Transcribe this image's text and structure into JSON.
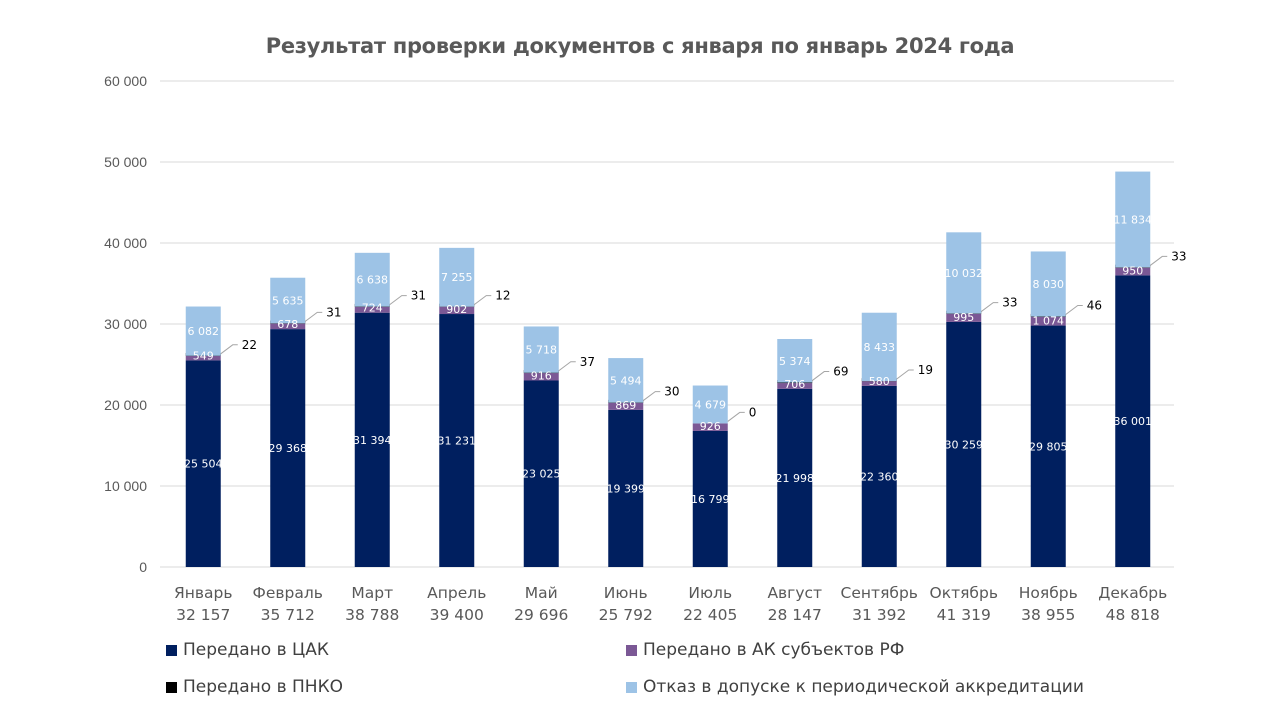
{
  "chart_data": {
    "type": "bar",
    "stacked": true,
    "title": "Результат проверки документов с января по январь 2024 года",
    "xlabel": "",
    "ylabel": "",
    "ylim": [
      0,
      60000
    ],
    "yticks": [
      0,
      10000,
      20000,
      30000,
      40000,
      50000,
      60000
    ],
    "ytick_labels": [
      "0",
      "10 000",
      "20 000",
      "30 000",
      "40 000",
      "50 000",
      "60 000"
    ],
    "grid": true,
    "legend_position": "bottom",
    "categories": [
      "Январь",
      "Февраль",
      "Март",
      "Апрель",
      "Май",
      "Июнь",
      "Июль",
      "Август",
      "Сентябрь",
      "Октябрь",
      "Ноябрь",
      "Декабрь"
    ],
    "category_totals": [
      "32 157",
      "35 712",
      "38 788",
      "39 400",
      "29 696",
      "25 792",
      "22 405",
      "28 147",
      "31 392",
      "41 319",
      "38 955",
      "48 818"
    ],
    "series": [
      {
        "name": "Передано в ЦАК",
        "color": "#001F5F",
        "label_style": "inside",
        "values": [
          25504,
          29368,
          31394,
          31231,
          23025,
          19399,
          16799,
          21998,
          22360,
          30259,
          29805,
          36001
        ],
        "labels": [
          "25 504",
          "29 368",
          "31 394",
          "31 231",
          "23 025",
          "19 399",
          "16 799",
          "21 998",
          "22 360",
          "30 259",
          "29 805",
          "36 001"
        ]
      },
      {
        "name": "Передано в АК субъектов РФ",
        "color": "#7B5895",
        "label_style": "inside",
        "values": [
          549,
          678,
          724,
          902,
          916,
          869,
          926,
          706,
          580,
          995,
          1074,
          950
        ],
        "labels": [
          "549",
          "678",
          "724",
          "902",
          "916",
          "869",
          "926",
          "706",
          "580",
          "995",
          "1 074",
          "950"
        ]
      },
      {
        "name": "Передано в ПНКО",
        "color": "#000000",
        "label_style": "callout",
        "values": [
          22,
          31,
          31,
          12,
          37,
          30,
          0,
          69,
          19,
          33,
          46,
          33
        ],
        "labels": [
          "22",
          "31",
          "31",
          "12",
          "37",
          "30",
          "0",
          "69",
          "19",
          "33",
          "46",
          "33"
        ]
      },
      {
        "name": "Отказ в допуске к периодической аккредитации",
        "color": "#9DC3E6",
        "label_style": "inside",
        "values": [
          6082,
          5635,
          6638,
          7255,
          5718,
          5494,
          4679,
          5374,
          8433,
          10032,
          8030,
          11834
        ],
        "labels": [
          "6 082",
          "5 635",
          "6 638",
          "7 255",
          "5 718",
          "5 494",
          "4 679",
          "5 374",
          "8 433",
          "10 032",
          "8 030",
          "11 834"
        ]
      }
    ]
  },
  "legend": {
    "items": [
      {
        "label": "Передано в ЦАК",
        "color": "#001F5F"
      },
      {
        "label": "Передано в АК субъектов РФ",
        "color": "#7B5895"
      },
      {
        "label": "Передано в ПНКО",
        "color": "#000000"
      },
      {
        "label": "Отказ в допуске к периодической аккредитации",
        "color": "#9DC3E6"
      }
    ]
  }
}
